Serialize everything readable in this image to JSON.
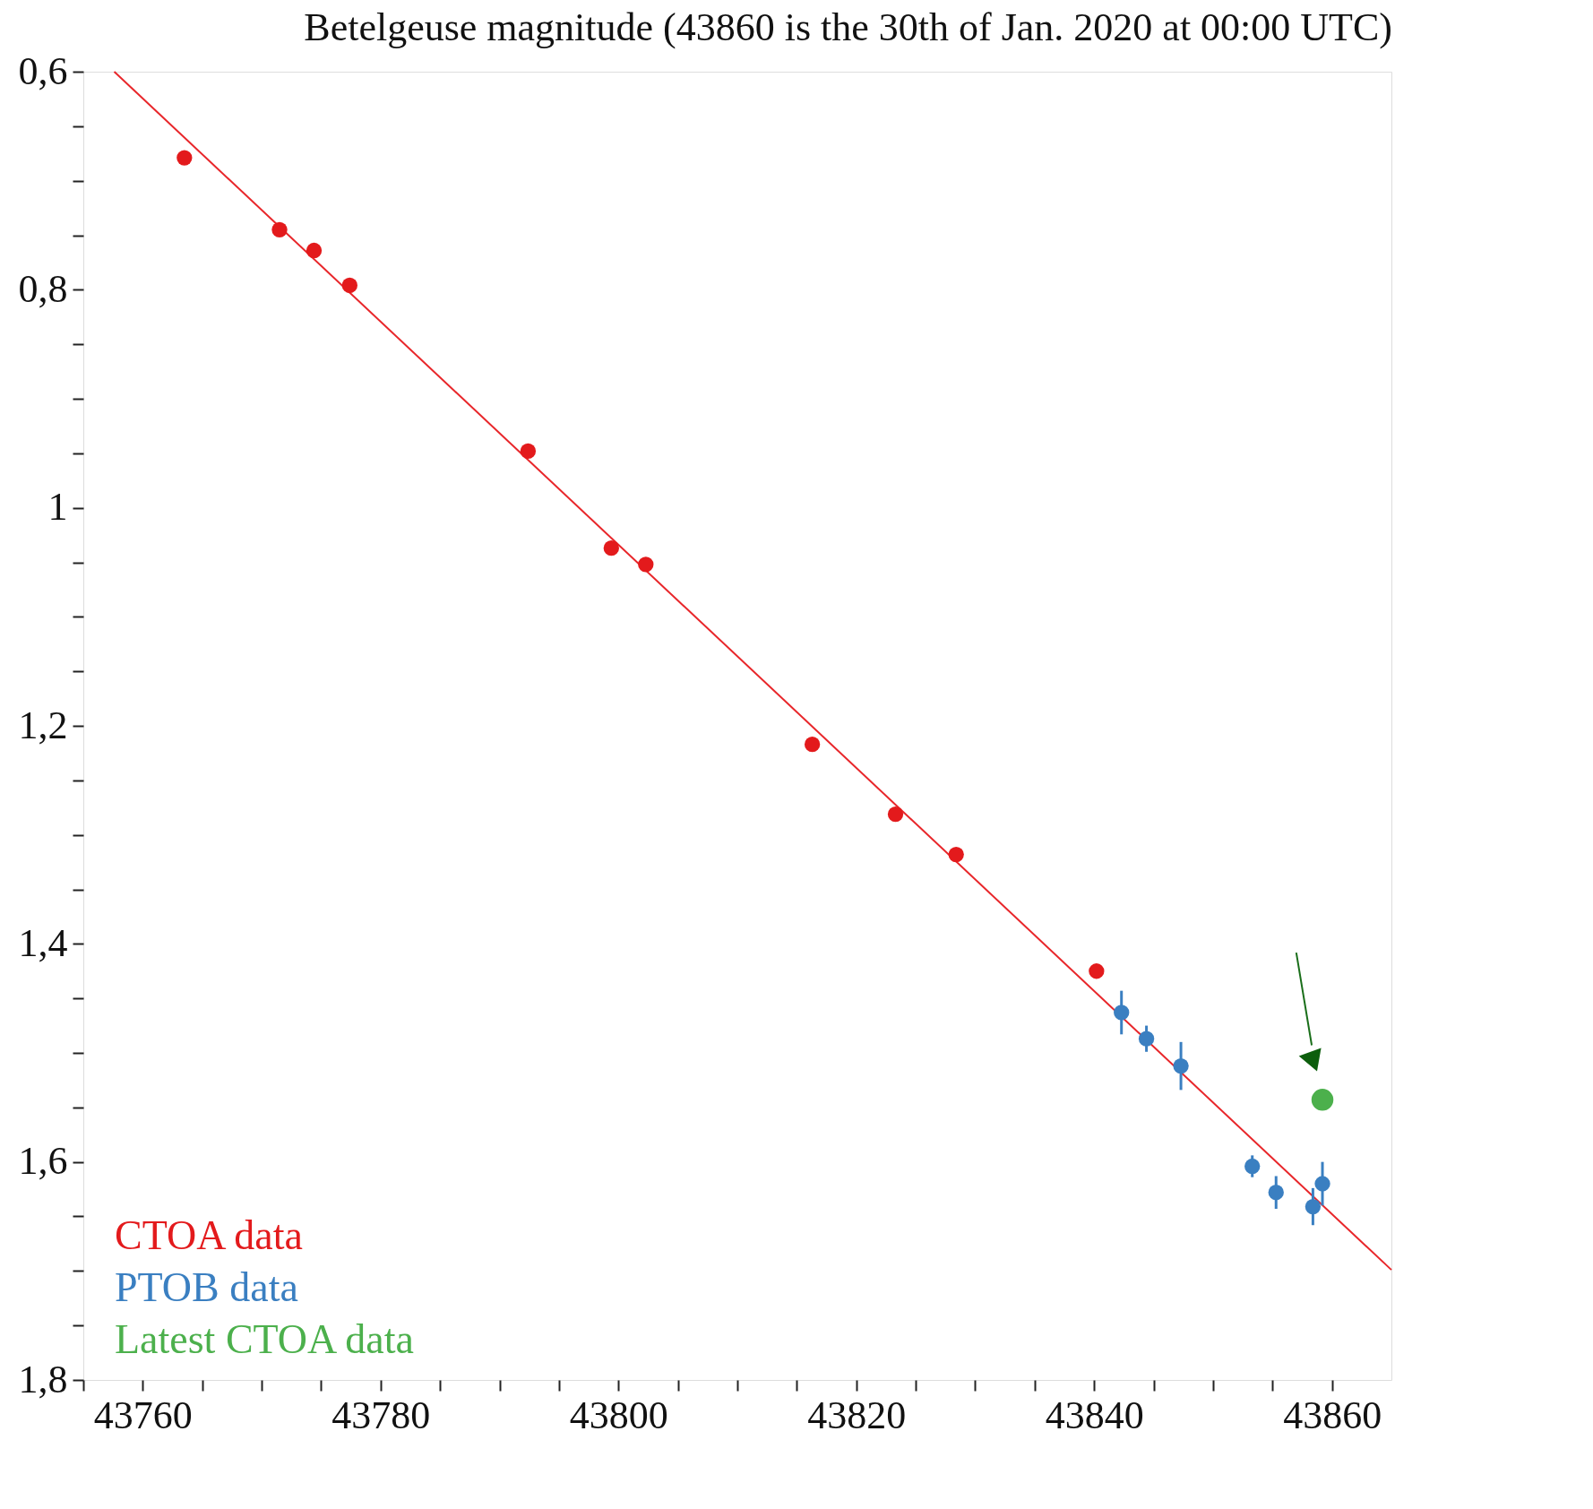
{
  "chart_data": {
    "type": "scatter",
    "title": "Betelgeuse magnitude (43860 is the 30th of Jan. 2020 at 00:00 UTC)",
    "xlim": [
      43755,
      43865
    ],
    "xticks": [
      {
        "value": 43755,
        "label": null
      },
      43760,
      {
        "value": 43765,
        "label": null
      },
      {
        "value": 43770,
        "label": null
      },
      {
        "value": 43775,
        "label": null
      },
      43780,
      {
        "value": 43785,
        "label": null
      },
      {
        "value": 43790,
        "label": null
      },
      {
        "value": 43795,
        "label": null
      },
      43800,
      {
        "value": 43805,
        "label": null
      },
      {
        "value": 43810,
        "label": null
      },
      {
        "value": 43815,
        "label": null
      },
      43820,
      {
        "value": 43825,
        "label": null
      },
      {
        "value": 43830,
        "label": null
      },
      {
        "value": 43835,
        "label": null
      },
      43840,
      {
        "value": 43845,
        "label": null
      },
      {
        "value": 43850,
        "label": null
      },
      {
        "value": 43855,
        "label": null
      },
      43860
    ],
    "ylim": [
      1.8,
      0.6
    ],
    "yticks": [
      {
        "value": 0.6,
        "label": "0,6"
      },
      {
        "value": 0.65,
        "label": null
      },
      {
        "value": 0.7,
        "label": null
      },
      {
        "value": 0.75,
        "label": null
      },
      {
        "value": 0.8,
        "label": "0,8"
      },
      {
        "value": 0.85,
        "label": null
      },
      {
        "value": 0.9,
        "label": null
      },
      {
        "value": 0.95,
        "label": null
      },
      1,
      {
        "value": 1.05,
        "label": null
      },
      {
        "value": 1.1,
        "label": null
      },
      {
        "value": 1.15,
        "label": null
      },
      {
        "value": 1.2,
        "label": "1,2"
      },
      {
        "value": 1.25,
        "label": null
      },
      {
        "value": 1.3,
        "label": null
      },
      {
        "value": 1.35,
        "label": null
      },
      {
        "value": 1.4,
        "label": "1,4"
      },
      {
        "value": 1.45,
        "label": null
      },
      {
        "value": 1.5,
        "label": null
      },
      {
        "value": 1.55,
        "label": null
      },
      {
        "value": 1.6,
        "label": "1,6"
      },
      {
        "value": 1.65,
        "label": null
      },
      {
        "value": 1.7,
        "label": null
      },
      {
        "value": 1.75,
        "label": null
      },
      {
        "value": 1.8,
        "label": "1,8"
      }
    ],
    "grid": false,
    "legend": "bottom left",
    "marker": "circle",
    "series": [
      {
        "type": "line",
        "marker": "none",
        "line_style": "solid",
        "color": "#e8262a",
        "x": [
          43757.6,
          43865
        ],
        "values": [
          0.6,
          1.699
        ]
      },
      {
        "name": "CTOA data",
        "color": "#e31a1c",
        "x": [
          43763.5,
          43771.5,
          43774.4,
          43777.4,
          43792.4,
          43799.4,
          43802.3,
          43816.3,
          43823.3,
          43828.4,
          43840.2
        ],
        "values": [
          0.679,
          0.745,
          0.764,
          0.796,
          0.948,
          1.037,
          1.052,
          1.217,
          1.281,
          1.318,
          1.425
        ]
      },
      {
        "name": "PTOB data",
        "color": "#3a7fc1",
        "x": [
          43842.3,
          43844.4,
          43847.3,
          43853.3,
          43855.3,
          43858.4,
          43859.2
        ],
        "values": [
          1.463,
          1.487,
          1.512,
          1.604,
          1.628,
          1.641,
          1.62
        ],
        "errors": [
          0.02,
          0.012,
          0.022,
          0.01,
          0.015,
          0.017,
          0.02
        ]
      },
      {
        "name": "Latest CTOA data",
        "color": "#4cb04c",
        "x": [
          43859.2
        ],
        "values": [
          1.543
        ]
      }
    ]
  }
}
